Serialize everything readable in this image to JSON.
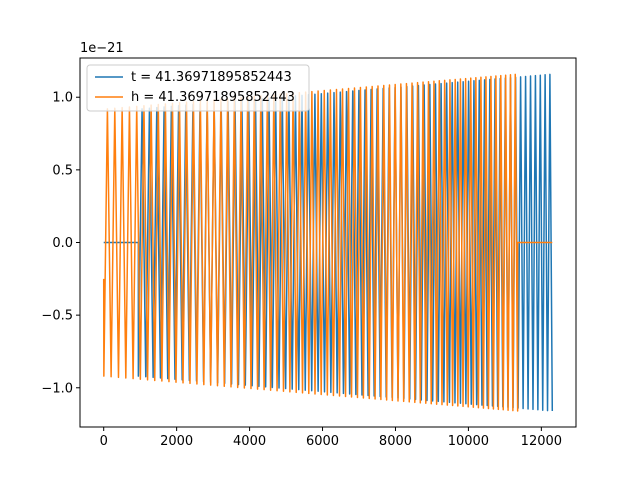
{
  "chart_data": {
    "type": "line",
    "title": "",
    "xlabel": "",
    "ylabel": "",
    "y_offset_label": "1e−21",
    "xlim": [
      -650,
      12950
    ],
    "ylim": [
      -1.27,
      1.27
    ],
    "xticks": [
      0,
      2000,
      4000,
      6000,
      8000,
      10000,
      12000
    ],
    "xtick_labels": [
      "0",
      "2000",
      "4000",
      "6000",
      "8000",
      "10000",
      "12000"
    ],
    "yticks": [
      -1.0,
      -0.5,
      0.0,
      0.5,
      1.0
    ],
    "ytick_labels": [
      "−1.0",
      "−0.5",
      "0.0",
      "0.5",
      "1.0"
    ],
    "grid": false,
    "legend_position": "top-left",
    "series": [
      {
        "name": "t = 41.36971895852443",
        "color": "#1f77b4",
        "lead_zero": [
          0,
          950
        ],
        "signal_span": [
          950,
          12300
        ],
        "trail_zero": null,
        "start_value": 0.92,
        "cycles": 68,
        "amplitude_start": 0.92,
        "amplitude_end": 1.16
      },
      {
        "name": "h = 41.36971895852443",
        "color": "#ff7f0e",
        "lead_zero": null,
        "signal_span": [
          0,
          11350
        ],
        "trail_zero": [
          11350,
          12300
        ],
        "start_value": -0.25,
        "cycles": 68,
        "amplitude_start": 0.92,
        "amplitude_end": 1.16
      }
    ]
  }
}
